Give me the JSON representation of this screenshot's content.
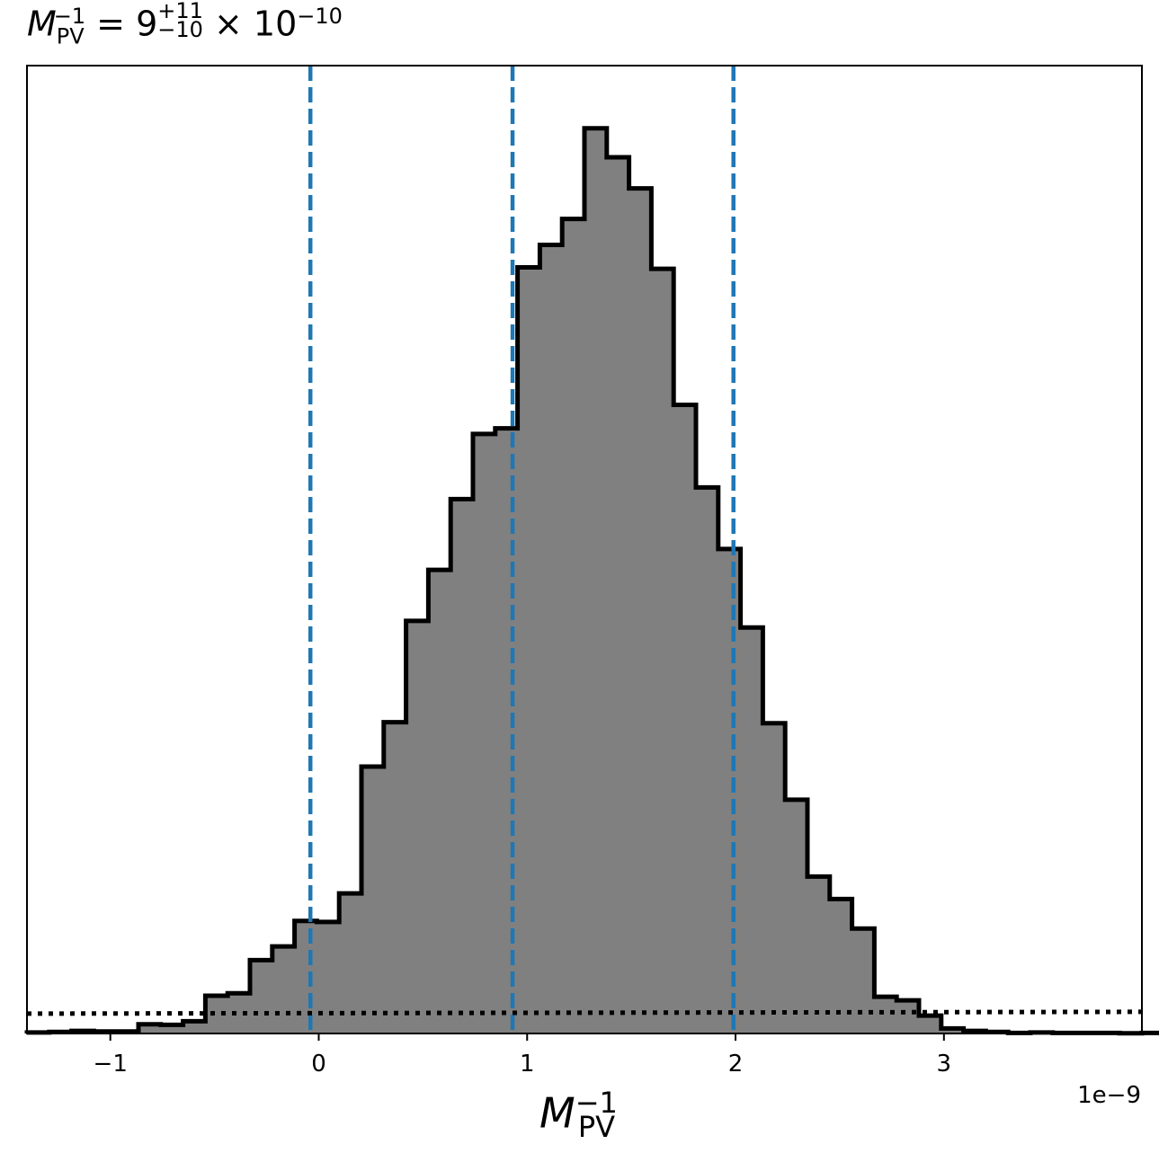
{
  "title": {
    "symbol": "M",
    "sub": "PV",
    "sup": "−1",
    "eq": " = 9",
    "plus": "+11",
    "minus": "−10",
    "times": " × 10",
    "exp": "−10"
  },
  "xlabel": {
    "symbol": "M",
    "sub": "PV",
    "sup": "−1"
  },
  "offset_label": "1e−9",
  "chart_data": {
    "type": "bar",
    "histogram": true,
    "bin_start": -1.4,
    "bin_width": 0.107,
    "values": [
      0.2,
      0.3,
      0.5,
      0.4,
      0.4,
      1.8,
      1.7,
      2.4,
      7.4,
      7.9,
      14.4,
      17.1,
      22.1,
      21.9,
      27.5,
      52.4,
      61.1,
      81.0,
      91.0,
      104.9,
      117.7,
      118.8,
      150.4,
      154.8,
      159.9,
      177.7,
      172.0,
      165.9,
      150.1,
      123.4,
      107.2,
      95.1,
      79.7,
      60.9,
      45.9,
      30.8,
      26.4,
      20.6,
      7.2,
      6.5,
      3.5,
      1.0,
      0.5,
      0.3,
      0.1,
      0.2,
      0.1,
      0.1,
      0.1,
      0.05,
      0.1,
      0.05
    ],
    "xlim": [
      -1.4,
      3.95
    ],
    "ylim": [
      0,
      190
    ],
    "xticks": [
      -1,
      0,
      1,
      2,
      3
    ],
    "xtick_labels": [
      "−1",
      "0",
      "1",
      "2",
      "3"
    ],
    "quantile_lines": [
      -0.04,
      0.93,
      1.99
    ],
    "prior_level": 3.9,
    "colors": {
      "fill": "#808080",
      "edge": "#000000",
      "quantile": "#1f77b4",
      "prior": "#000000"
    },
    "grid": false
  }
}
